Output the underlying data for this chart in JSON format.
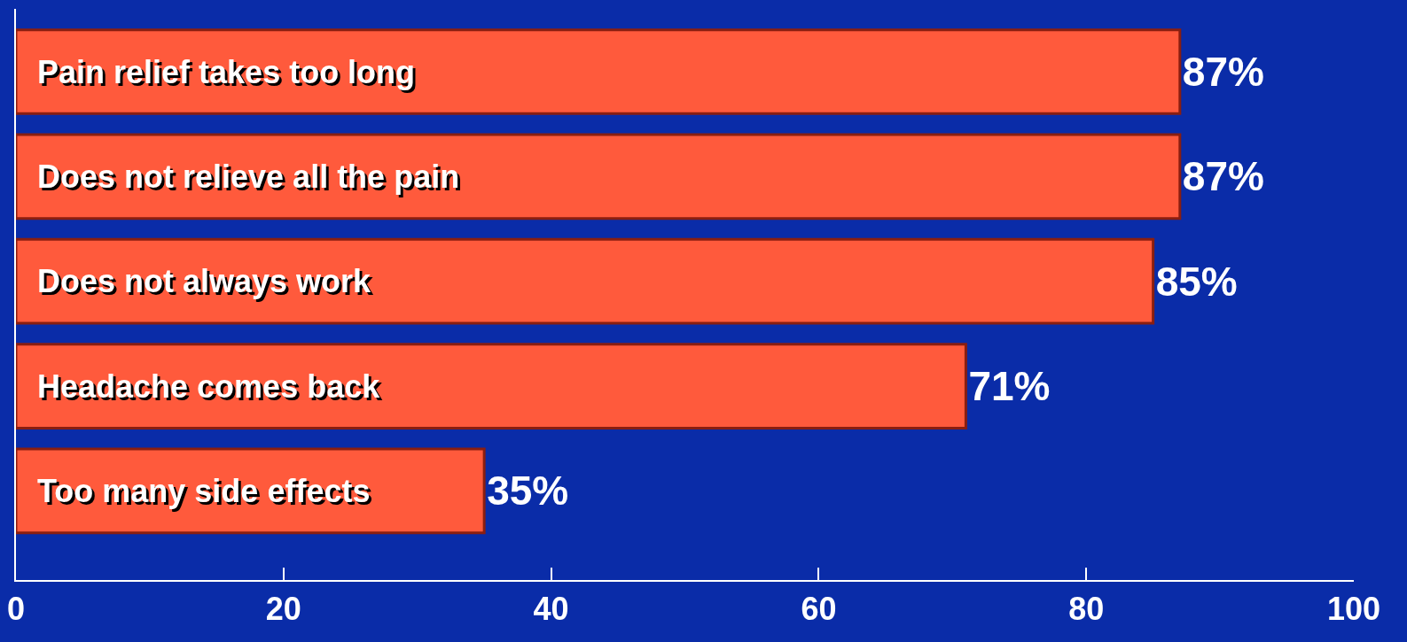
{
  "chart_data": {
    "type": "bar",
    "orientation": "horizontal",
    "categories": [
      "Pain relief takes too long",
      "Does not relieve all the pain",
      "Does not always work",
      "Headache comes back",
      "Too many side effects"
    ],
    "values": [
      87,
      87,
      85,
      71,
      35
    ],
    "value_labels": [
      "87%",
      "87%",
      "85%",
      "71%",
      "35%"
    ],
    "color": "#ff5a3c",
    "xlim": [
      0,
      100
    ],
    "xticks": [
      0,
      20,
      40,
      60,
      80,
      100
    ],
    "grid": false
  }
}
